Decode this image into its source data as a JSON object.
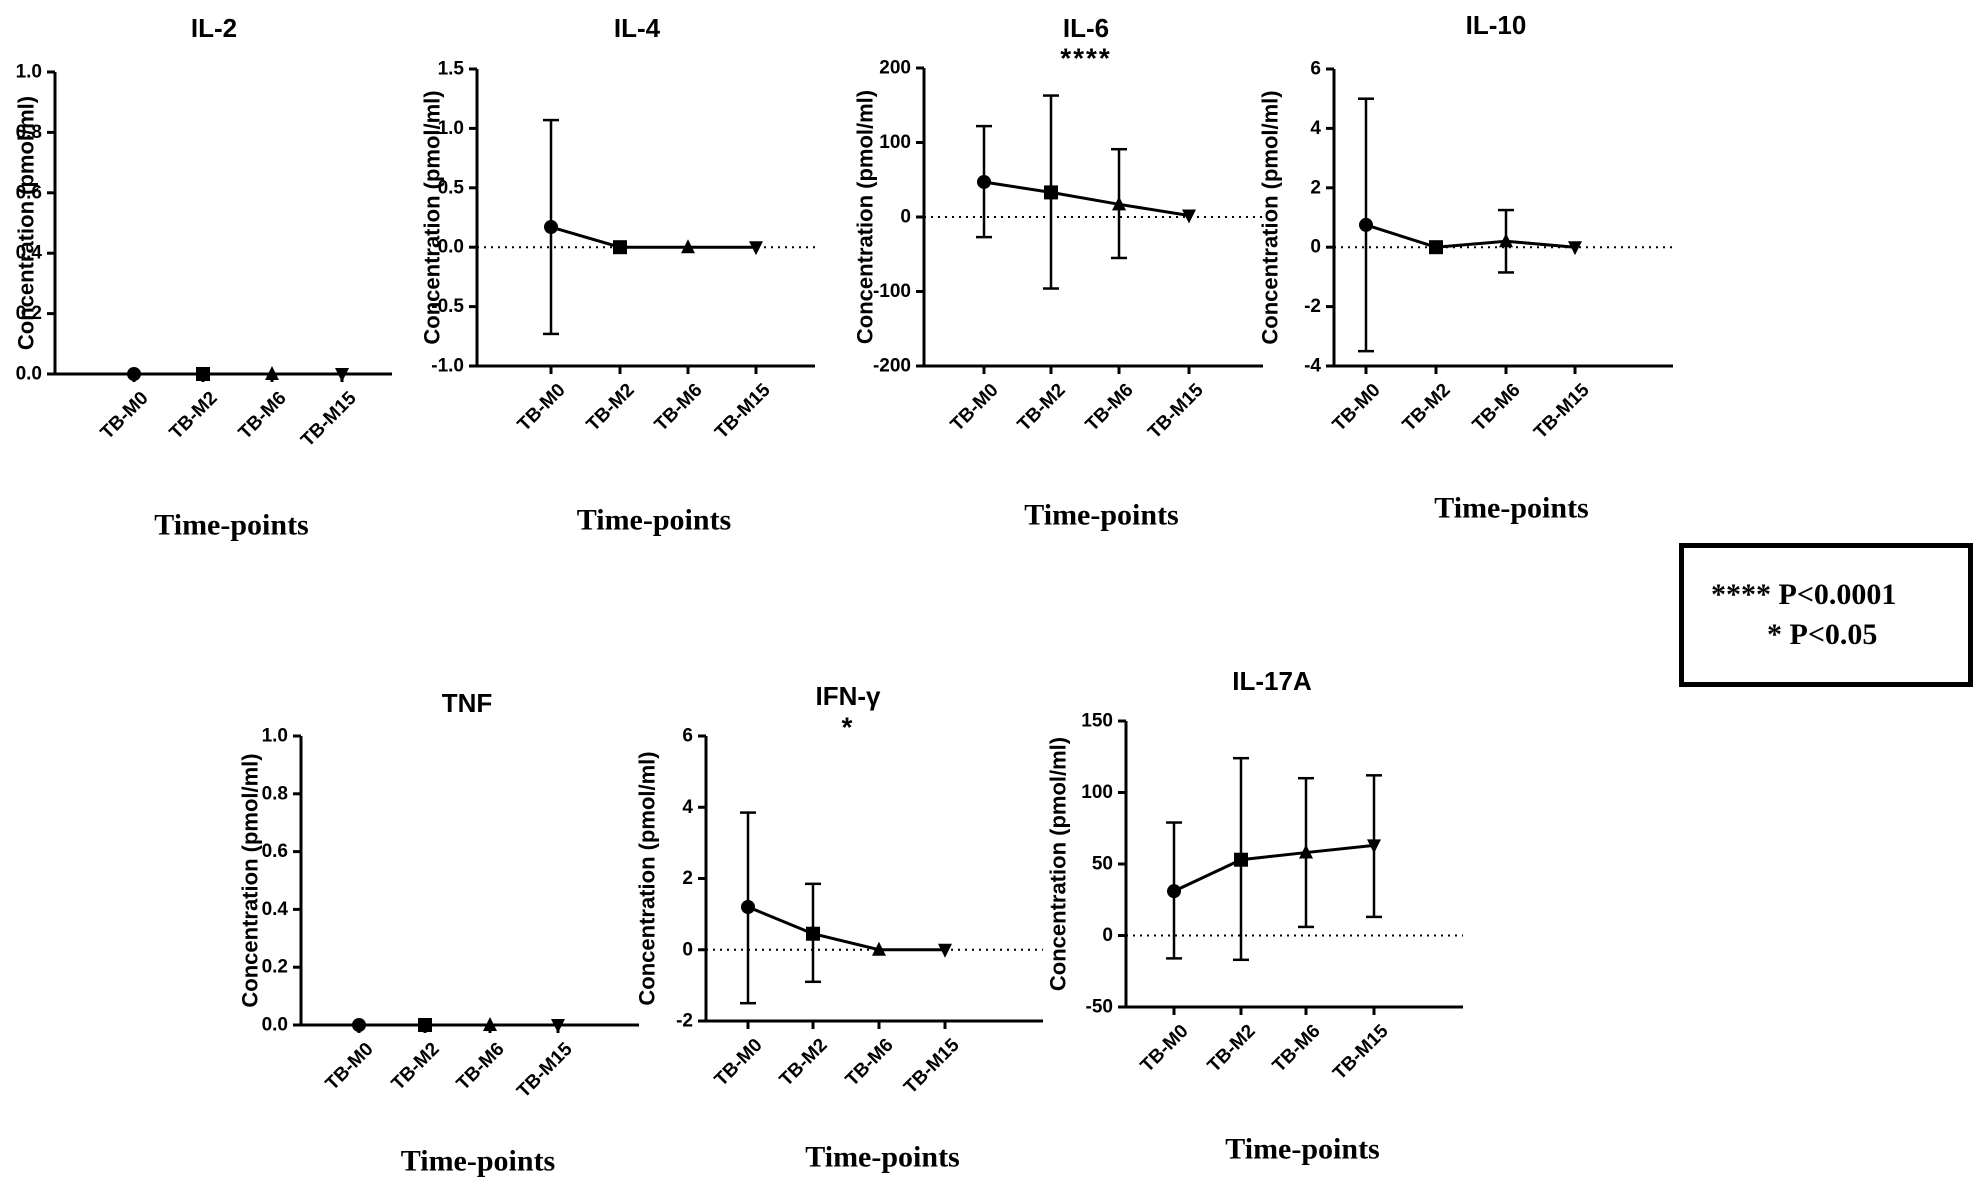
{
  "chart_data": [
    {
      "type": "line",
      "title": "IL-2",
      "significance": "",
      "ylabel": "Concentration (pmol/ml)",
      "xlabel": "Time-points",
      "categories": [
        "TB-M0",
        "TB-M2",
        "TB-M6",
        "TB-M15"
      ],
      "yticks": [
        "0.0",
        "0.2",
        "0.4",
        "0.6",
        "0.8",
        "1.0"
      ],
      "ylim": [
        0,
        1.0
      ],
      "series": [
        {
          "name": "IL-2",
          "values": [
            0,
            0,
            0,
            0
          ],
          "err_high": [
            0,
            0,
            0,
            0
          ],
          "err_low": [
            0,
            0,
            0,
            0
          ]
        }
      ]
    },
    {
      "type": "line",
      "title": "IL-4",
      "significance": "",
      "ylabel": "Concentration (pmol/ml)",
      "xlabel": "Time-points",
      "categories": [
        "TB-M0",
        "TB-M2",
        "TB-M6",
        "TB-M15"
      ],
      "yticks": [
        "-1.0",
        "-0.5",
        "0.0",
        "0.5",
        "1.0",
        "1.5"
      ],
      "ylim": [
        -1.0,
        1.5
      ],
      "series": [
        {
          "name": "IL-4",
          "values": [
            0.17,
            0,
            0,
            0
          ],
          "err_high": [
            1.07,
            0,
            0,
            0
          ],
          "err_low": [
            -0.73,
            0,
            0,
            0
          ]
        }
      ]
    },
    {
      "type": "line",
      "title": "IL-6",
      "significance": "****",
      "ylabel": "Concentration (pmol/ml)",
      "xlabel": "Time-points",
      "categories": [
        "TB-M0",
        "TB-M2",
        "TB-M6",
        "TB-M15"
      ],
      "yticks": [
        "-200",
        "-100",
        "0",
        "100",
        "200"
      ],
      "ylim": [
        -200,
        200
      ],
      "series": [
        {
          "name": "IL-6",
          "values": [
            47,
            33,
            17,
            2
          ],
          "err_high": [
            122,
            163,
            91,
            2
          ],
          "err_low": [
            -27,
            -96,
            -55,
            2
          ]
        }
      ]
    },
    {
      "type": "line",
      "title": "IL-10",
      "significance": "",
      "ylabel": "Concentration (pmol/ml)",
      "xlabel": "Time-points",
      "categories": [
        "TB-M0",
        "TB-M2",
        "TB-M6",
        "TB-M15"
      ],
      "yticks": [
        "-4",
        "-2",
        "0",
        "2",
        "4",
        "6"
      ],
      "ylim": [
        -4,
        6
      ],
      "series": [
        {
          "name": "IL-10",
          "values": [
            0.75,
            0,
            0.2,
            0
          ],
          "err_high": [
            5.0,
            0,
            1.25,
            0
          ],
          "err_low": [
            -3.5,
            0,
            -0.85,
            0
          ]
        }
      ]
    },
    {
      "type": "line",
      "title": "TNF",
      "significance": "",
      "ylabel": "Concentration (pmol/ml)",
      "xlabel": "Time-points",
      "categories": [
        "TB-M0",
        "TB-M2",
        "TB-M6",
        "TB-M15"
      ],
      "yticks": [
        "0.0",
        "0.2",
        "0.4",
        "0.6",
        "0.8",
        "1.0"
      ],
      "ylim": [
        0,
        1.0
      ],
      "series": [
        {
          "name": "TNF",
          "values": [
            0,
            0,
            0,
            0
          ],
          "err_high": [
            0,
            0,
            0,
            0
          ],
          "err_low": [
            0,
            0,
            0,
            0
          ]
        }
      ]
    },
    {
      "type": "line",
      "title": "IFN-γ",
      "significance": "*",
      "ylabel": "Concentration (pmol/ml)",
      "xlabel": "Time-points",
      "categories": [
        "TB-M0",
        "TB-M2",
        "TB-M6",
        "TB-M15"
      ],
      "yticks": [
        "-2",
        "0",
        "2",
        "4",
        "6"
      ],
      "ylim": [
        -2,
        6
      ],
      "series": [
        {
          "name": "IFN-γ",
          "values": [
            1.2,
            0.45,
            0,
            0
          ],
          "err_high": [
            3.85,
            1.85,
            0,
            0
          ],
          "err_low": [
            -1.5,
            -0.9,
            0,
            0
          ]
        }
      ]
    },
    {
      "type": "line",
      "title": "IL-17A",
      "significance": "",
      "ylabel": "Concentration (pmol/ml)",
      "xlabel": "Time-points",
      "categories": [
        "TB-M0",
        "TB-M2",
        "TB-M6",
        "TB-M15"
      ],
      "yticks": [
        "-50",
        "0",
        "50",
        "100",
        "150"
      ],
      "ylim": [
        -50,
        150
      ],
      "series": [
        {
          "name": "IL-17A",
          "values": [
            31,
            53,
            58,
            63
          ],
          "err_high": [
            79,
            124,
            110,
            112
          ],
          "err_low": [
            -16,
            -17,
            6,
            13
          ]
        }
      ]
    }
  ],
  "legend": {
    "line1": "**** P<0.0001",
    "line2": "* P<0.05"
  }
}
